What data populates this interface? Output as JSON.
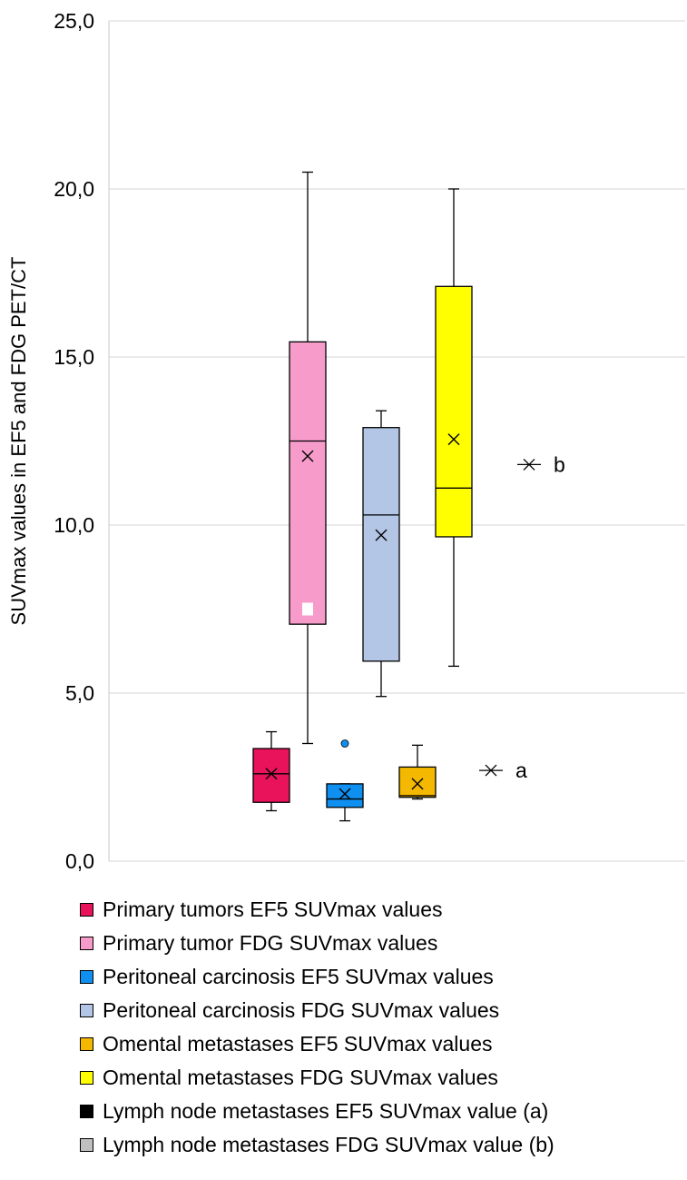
{
  "chart_data": {
    "type": "box",
    "title": "",
    "xlabel": "",
    "ylabel": "SUVmax values in EF5 and FDG PET/CT",
    "ylim": [
      0,
      25
    ],
    "yticks": [
      "0,0",
      "5,0",
      "10,0",
      "15,0",
      "20,0",
      "25,0"
    ],
    "ytick_values": [
      0,
      5,
      10,
      15,
      20,
      25
    ],
    "grid": true,
    "legend_position": "bottom",
    "series": [
      {
        "name": "Primary tumors EF5 SUVmax values",
        "color": "#e8135b",
        "min": 1.5,
        "q1": 1.75,
        "median": 2.6,
        "q3": 3.35,
        "max": 3.85,
        "mean": 2.6,
        "outliers": []
      },
      {
        "name": "Primary tumor FDG SUVmax values",
        "color": "#f79bcb",
        "min": 3.5,
        "q1": 7.05,
        "median": 12.5,
        "q3": 15.45,
        "max": 20.5,
        "mean": 12.05,
        "outliers": [
          7.5
        ],
        "outlier_color": "#ffffff"
      },
      {
        "name": "Peritoneal carcinosis EF5 SUVmax values",
        "color": "#0f8ff0",
        "min": 1.2,
        "q1": 1.6,
        "median": 1.85,
        "q3": 2.3,
        "max": 2.3,
        "mean": 2.0,
        "outliers": [
          3.5
        ],
        "outlier_color": "#0f8ff0"
      },
      {
        "name": "Peritoneal carcinosis FDG SUVmax values",
        "color": "#b4c6e6",
        "min": 4.9,
        "q1": 5.95,
        "median": 10.3,
        "q3": 12.9,
        "max": 13.4,
        "mean": 9.7,
        "outliers": []
      },
      {
        "name": "Omental metastases EF5 SUVmax values",
        "color": "#f5b800",
        "min": 1.85,
        "q1": 1.9,
        "median": 1.95,
        "q3": 2.8,
        "max": 3.45,
        "mean": 2.3,
        "outliers": []
      },
      {
        "name": "Omental metastases FDG SUVmax values",
        "color": "#ffff00",
        "min": 5.8,
        "q1": 9.65,
        "median": 11.1,
        "q3": 17.1,
        "max": 20.0,
        "mean": 12.55,
        "outliers": []
      },
      {
        "name": "Lymph node metastases EF5 SUVmax value (a)",
        "color": "#000000",
        "value": 2.7,
        "label": "a"
      },
      {
        "name": "Lymph node metastases FDG SUVmax value (b)",
        "color": "#c0c0c0",
        "value": 11.8,
        "label": "b"
      }
    ]
  }
}
